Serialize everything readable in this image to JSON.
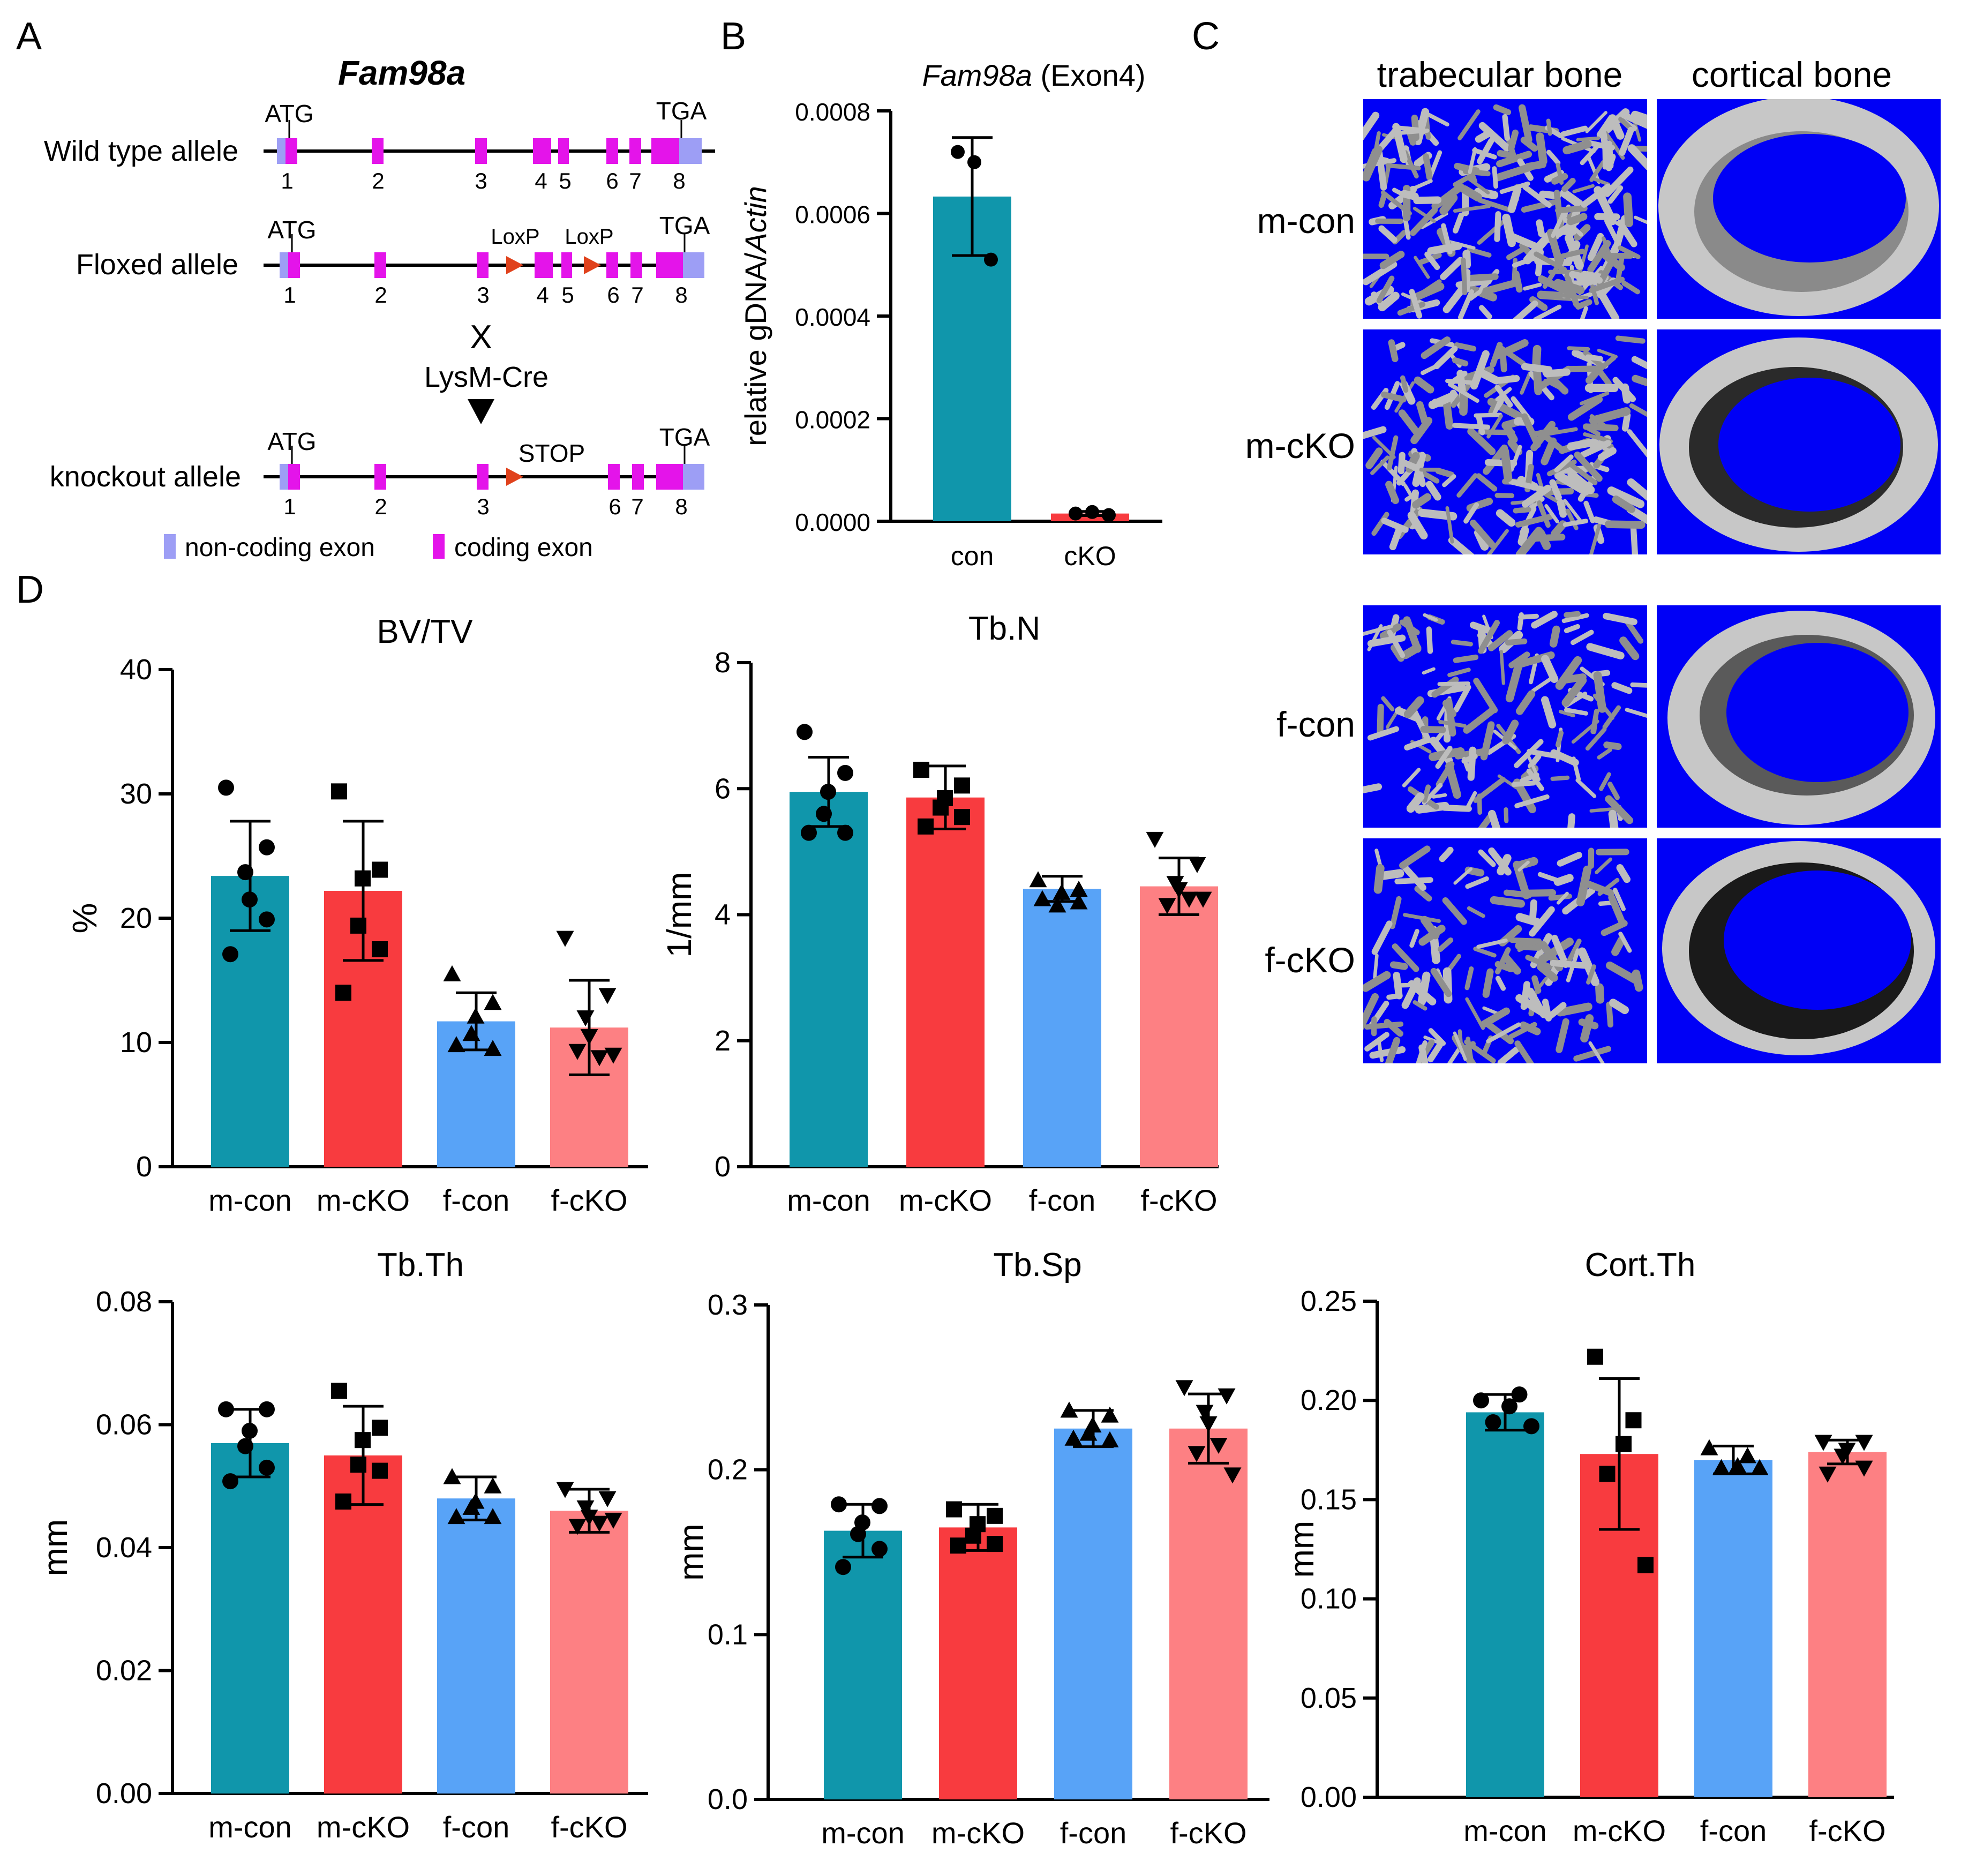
{
  "panels": {
    "a": "A",
    "b": "B",
    "c": "C",
    "d": "D"
  },
  "colors": {
    "m_con": "#1096ab",
    "m_cko": "#f83b3f",
    "f_con": "#58a3f7",
    "f_cko": "#fd8083",
    "coding_exon": "#e414ea",
    "noncoding_exon": "#9d9ef5",
    "loxp": "#e0421c",
    "micro_bg": "#0000f6"
  },
  "gene_diagram": {
    "gene": "Fam98a",
    "alleles": [
      {
        "name": "Wild type allele",
        "atg": "ATG",
        "tga": "TGA",
        "exons": [
          "1",
          "2",
          "3",
          "4",
          "5",
          "6",
          "7",
          "8"
        ]
      },
      {
        "name": "Floxed allele",
        "atg": "ATG",
        "tga": "TGA",
        "loxp1": "LoxP",
        "loxp2": "LoxP",
        "exons": [
          "1",
          "2",
          "3",
          "4",
          "5",
          "6",
          "7",
          "8"
        ]
      },
      {
        "name": "knockout allele",
        "atg": "ATG",
        "tga": "TGA",
        "stop": "STOP",
        "exons": [
          "1",
          "2",
          "3",
          "6",
          "7",
          "8"
        ]
      }
    ],
    "cross": "X",
    "cre": "LysM-Cre",
    "legend": {
      "noncoding": "non-coding exon",
      "coding": "coding exon"
    }
  },
  "microct": {
    "col_headers": [
      "trabecular bone",
      "cortical bone"
    ],
    "rows": [
      "m-con",
      "m-cKO",
      "f-con",
      "f-cKO"
    ]
  },
  "chart_data": [
    {
      "id": "B",
      "type": "bar",
      "title_italic": "Fam98a",
      "title_rest": " (Exon4)",
      "ylabel_plain": "relative gDNA/",
      "ylabel_italic": "Actin",
      "categories": [
        "con",
        "cKO"
      ],
      "values": [
        0.000633,
        1.5e-05
      ],
      "errors": [
        0.000115,
        4e-06
      ],
      "points": [
        [
          0.00072,
          0.0007,
          0.00051
        ],
        [
          1.5e-05,
          1.8e-05,
          1.2e-05
        ]
      ],
      "ylim": [
        0,
        0.0008
      ],
      "yticks": [
        "0.0000",
        "0.0002",
        "0.0004",
        "0.0006",
        "0.0008"
      ],
      "bar_colors": [
        "#1096ab",
        "#f83b3f"
      ]
    },
    {
      "id": "BVTV",
      "type": "bar",
      "title": "BV/TV",
      "ylabel": "%",
      "categories": [
        "m-con",
        "m-cKO",
        "f-con",
        "f-cKO"
      ],
      "values": [
        23.4,
        22.2,
        11.7,
        11.2
      ],
      "errors": [
        4.4,
        5.6,
        2.3,
        3.8
      ],
      "points": [
        [
          30.5,
          25.7,
          21.5,
          23.7,
          19.9,
          17.1
        ],
        [
          30.2,
          23.9,
          23.2,
          19.4,
          17.5,
          14.0
        ],
        [
          15.5,
          13.2,
          12.1,
          10.7,
          9.5,
          9.8
        ],
        [
          18.4,
          13.8,
          12.0,
          10.5,
          8.8,
          9.3,
          9.0
        ]
      ],
      "markers": [
        "circle",
        "square",
        "triangle",
        "triangle-down"
      ],
      "ylim": [
        0,
        40
      ],
      "yticks": [
        "0",
        "10",
        "20",
        "30",
        "40"
      ]
    },
    {
      "id": "TbN",
      "type": "bar",
      "title": "Tb.N",
      "ylabel": "1/mm",
      "categories": [
        "m-con",
        "m-cKO",
        "f-con",
        "f-cKO"
      ],
      "values": [
        5.95,
        5.86,
        4.41,
        4.45
      ],
      "errors": [
        0.55,
        0.5,
        0.2,
        0.45
      ],
      "points": [
        [
          6.9,
          6.25,
          5.95,
          5.6,
          5.3,
          5.3
        ],
        [
          6.3,
          6.05,
          5.85,
          5.7,
          5.55,
          5.4
        ],
        [
          4.55,
          4.4,
          4.35,
          4.15,
          4.2,
          4.25
        ],
        [
          5.2,
          4.8,
          4.5,
          4.4,
          4.25,
          4.15,
          4.25
        ]
      ],
      "markers": [
        "circle",
        "square",
        "triangle",
        "triangle-down"
      ],
      "ylim": [
        0,
        8
      ],
      "yticks": [
        "0",
        "2",
        "4",
        "6",
        "8"
      ]
    },
    {
      "id": "TbTh",
      "type": "bar",
      "title": "Tb.Th",
      "ylabel": "mm",
      "categories": [
        "m-con",
        "m-cKO",
        "f-con",
        "f-cKO"
      ],
      "values": [
        0.057,
        0.055,
        0.048,
        0.046
      ],
      "errors": [
        0.0055,
        0.008,
        0.0035,
        0.0035
      ],
      "points": [
        [
          0.0625,
          0.0625,
          0.059,
          0.0565,
          0.053,
          0.0508
        ],
        [
          0.0655,
          0.0595,
          0.0575,
          0.0535,
          0.0525,
          0.0475
        ],
        [
          0.0515,
          0.05,
          0.0475,
          0.0465,
          0.045,
          0.045
        ],
        [
          0.0495,
          0.048,
          0.0465,
          0.045,
          0.044,
          0.0435,
          0.0445
        ]
      ],
      "markers": [
        "circle",
        "square",
        "triangle",
        "triangle-down"
      ],
      "ylim": [
        0,
        0.08
      ],
      "yticks": [
        "0.00",
        "0.02",
        "0.04",
        "0.06",
        "0.08"
      ]
    },
    {
      "id": "TbSp",
      "type": "bar",
      "title": "Tb.Sp",
      "ylabel": "mm",
      "categories": [
        "m-con",
        "m-cKO",
        "f-con",
        "f-cKO"
      ],
      "values": [
        0.163,
        0.165,
        0.225,
        0.225
      ],
      "errors": [
        0.016,
        0.014,
        0.011,
        0.021
      ],
      "points": [
        [
          0.179,
          0.178,
          0.168,
          0.161,
          0.152,
          0.141
        ],
        [
          0.176,
          0.172,
          0.167,
          0.16,
          0.155,
          0.154
        ],
        [
          0.236,
          0.233,
          0.227,
          0.222,
          0.218,
          0.219
        ],
        [
          0.25,
          0.245,
          0.235,
          0.228,
          0.215,
          0.21,
          0.197
        ]
      ],
      "markers": [
        "circle",
        "square",
        "triangle",
        "triangle-down"
      ],
      "ylim": [
        0,
        0.3
      ],
      "yticks": [
        "0.0",
        "0.1",
        "0.2",
        "0.3"
      ]
    },
    {
      "id": "CortTh",
      "type": "bar",
      "title": "Cort.Th",
      "ylabel": "mm",
      "categories": [
        "m-con",
        "m-cKO",
        "f-con",
        "f-cKO"
      ],
      "values": [
        0.194,
        0.173,
        0.17,
        0.174
      ],
      "errors": [
        0.009,
        0.038,
        0.007,
        0.006
      ],
      "points": [
        [
          0.2,
          0.203,
          0.197,
          0.189,
          0.187
        ],
        [
          0.222,
          0.19,
          0.178,
          0.163,
          0.117
        ],
        [
          0.176,
          0.172,
          0.167,
          0.166,
          0.166
        ],
        [
          0.179,
          0.179,
          0.175,
          0.172,
          0.166,
          0.163
        ]
      ],
      "markers": [
        "circle",
        "square",
        "triangle",
        "triangle-down"
      ],
      "ylim": [
        0,
        0.25
      ],
      "yticks": [
        "0.00",
        "0.05",
        "0.10",
        "0.15",
        "0.20",
        "0.25"
      ]
    }
  ]
}
